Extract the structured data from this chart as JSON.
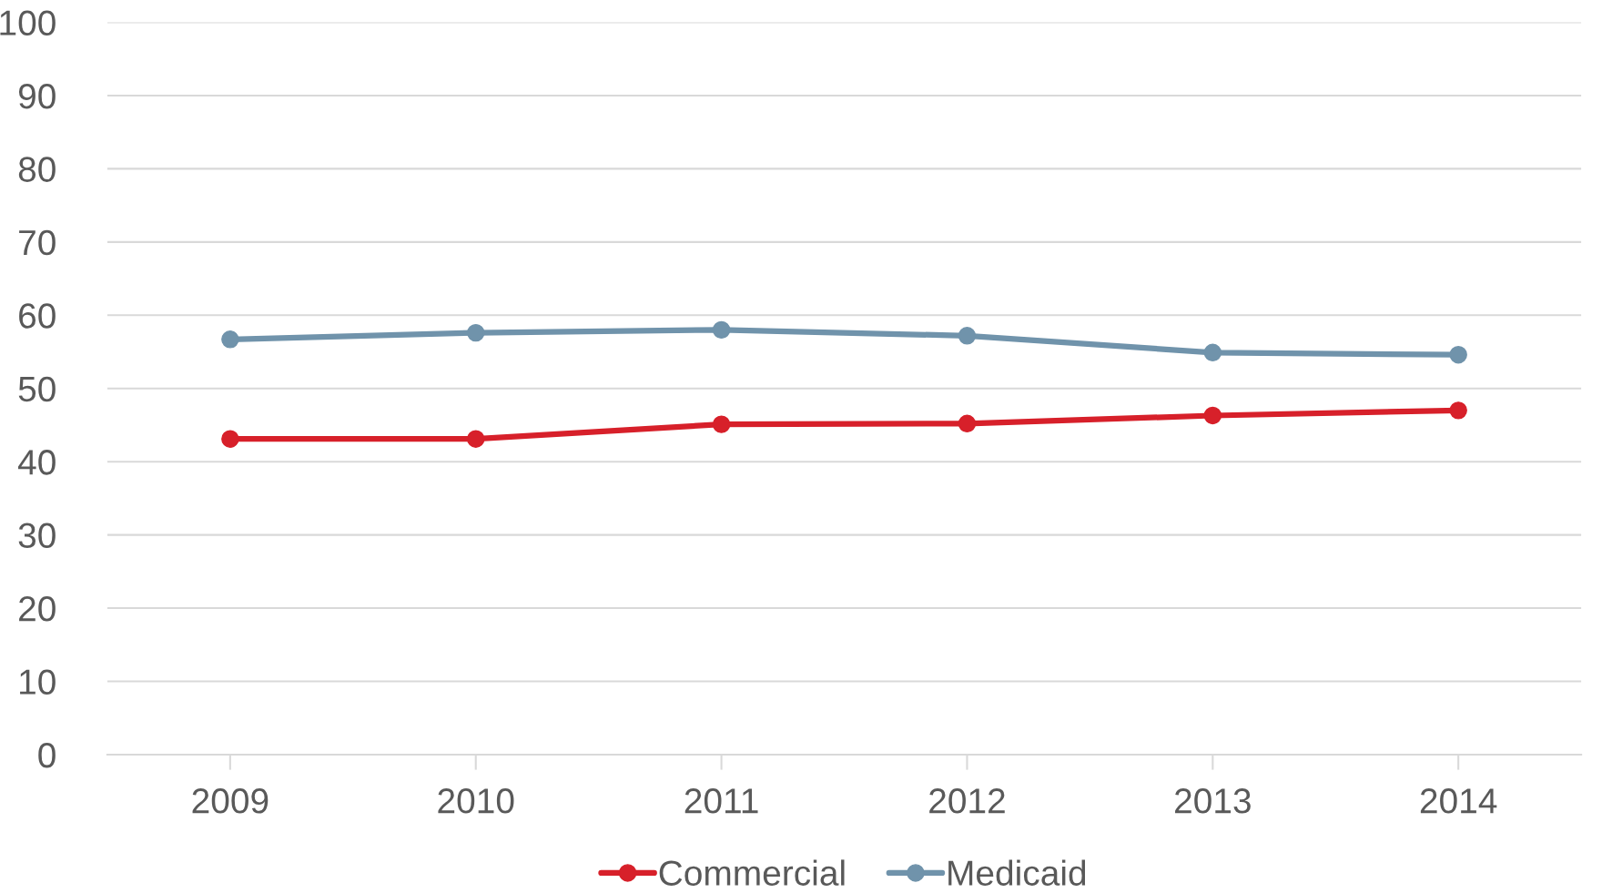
{
  "chart_data": {
    "type": "line",
    "categories": [
      "2009",
      "2010",
      "2011",
      "2012",
      "2013",
      "2014"
    ],
    "series": [
      {
        "name": "Commercial",
        "color": "#d7202a",
        "values": [
          43.1,
          43.1,
          45.1,
          45.2,
          46.3,
          47.0
        ]
      },
      {
        "name": "Medicaid",
        "color": "#7093ab",
        "values": [
          56.7,
          57.6,
          58.0,
          57.2,
          54.9,
          54.6
        ]
      }
    ],
    "ylim": [
      0,
      100
    ],
    "yticks": [
      0,
      10,
      20,
      30,
      40,
      50,
      60,
      70,
      80,
      90,
      100
    ],
    "grid": "y",
    "legend": "bottom",
    "marker": "circle",
    "line_style": "solid"
  }
}
